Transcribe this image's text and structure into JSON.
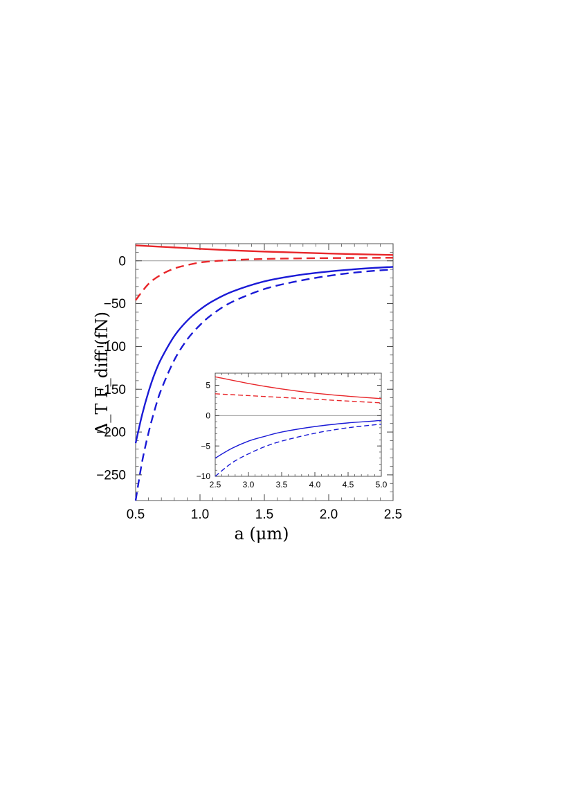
{
  "chart_data": [
    {
      "type": "line",
      "xlabel": "a (μm)",
      "ylabel": "Δ_T F_diff (fN)",
      "xlim": [
        0.5,
        2.5
      ],
      "ylim": [
        -280,
        20
      ],
      "x_ticks": [
        0.5,
        1.0,
        1.5,
        2.0,
        2.5
      ],
      "x_tick_labels": [
        "0.5",
        "1.0",
        "1.5",
        "2.0",
        "2.5"
      ],
      "y_ticks": [
        0,
        -50,
        -100,
        -150,
        -200,
        -250
      ],
      "y_tick_labels": [
        "0",
        "−50",
        "−100",
        "−150",
        "−200",
        "−250"
      ],
      "grid": false,
      "zero_line": true,
      "series": [
        {
          "color": "#e8262a",
          "style": "solid",
          "x": [
            0.5,
            0.75,
            1.0,
            1.25,
            1.5,
            1.75,
            2.0,
            2.25,
            2.5
          ],
          "y": [
            18,
            16,
            14,
            12.2,
            10.8,
            9.6,
            8.5,
            7.6,
            6.8
          ]
        },
        {
          "color": "#e8262a",
          "style": "dashed",
          "x": [
            0.5,
            0.6,
            0.7,
            0.8,
            0.9,
            1.0,
            1.1,
            1.2,
            1.3,
            1.5,
            1.75,
            2.0,
            2.25,
            2.5
          ],
          "y": [
            -46,
            -27,
            -16,
            -9,
            -5,
            -2,
            -0.5,
            0.5,
            1.2,
            2.2,
            2.8,
            3.2,
            3.4,
            3.6
          ]
        },
        {
          "color": "#1a1ad6",
          "style": "solid",
          "x": [
            0.5,
            0.55,
            0.6,
            0.65,
            0.7,
            0.8,
            0.9,
            1.0,
            1.1,
            1.25,
            1.5,
            1.75,
            2.0,
            2.25,
            2.5
          ],
          "y": [
            -213,
            -180,
            -153,
            -131,
            -114,
            -88,
            -70,
            -57,
            -47,
            -36,
            -24,
            -17,
            -12.5,
            -9.3,
            -7
          ]
        },
        {
          "color": "#1a1ad6",
          "style": "dashed",
          "x": [
            0.5,
            0.55,
            0.6,
            0.65,
            0.7,
            0.8,
            0.9,
            1.0,
            1.1,
            1.25,
            1.5,
            1.75,
            2.0,
            2.25,
            2.5
          ],
          "y": [
            -280,
            -235,
            -201,
            -173,
            -150,
            -116,
            -92,
            -75,
            -62,
            -48,
            -33,
            -24,
            -17.5,
            -13,
            -10
          ]
        }
      ]
    },
    {
      "type": "line",
      "role": "inset",
      "xlim": [
        2.5,
        5.0
      ],
      "ylim": [
        -10,
        7
      ],
      "x_ticks": [
        2.5,
        3.0,
        3.5,
        4.0,
        4.5,
        5.0
      ],
      "x_tick_labels": [
        "2.5",
        "3.0",
        "3.5",
        "4.0",
        "4.5",
        "5.0"
      ],
      "y_ticks": [
        5,
        0,
        -5,
        -10
      ],
      "y_tick_labels": [
        "5",
        "0",
        "−5",
        "−10"
      ],
      "grid": false,
      "zero_line": true,
      "series": [
        {
          "color": "#e8262a",
          "style": "solid",
          "x": [
            2.5,
            3.0,
            3.5,
            4.0,
            4.5,
            5.0
          ],
          "y": [
            6.4,
            5.3,
            4.4,
            3.7,
            3.2,
            2.8
          ]
        },
        {
          "color": "#e8262a",
          "style": "dashed",
          "x": [
            2.5,
            3.0,
            3.5,
            4.0,
            4.5,
            5.0
          ],
          "y": [
            3.6,
            3.3,
            3.0,
            2.7,
            2.4,
            2.1
          ]
        },
        {
          "color": "#1a1ad6",
          "style": "solid",
          "x": [
            2.5,
            2.75,
            3.0,
            3.25,
            3.5,
            4.0,
            4.5,
            5.0
          ],
          "y": [
            -7.0,
            -5.4,
            -4.2,
            -3.4,
            -2.7,
            -1.8,
            -1.2,
            -0.8
          ]
        },
        {
          "color": "#1a1ad6",
          "style": "dashed",
          "x": [
            2.5,
            2.75,
            3.0,
            3.25,
            3.5,
            4.0,
            4.5,
            5.0
          ],
          "y": [
            -10.0,
            -7.8,
            -6.3,
            -5.1,
            -4.2,
            -2.9,
            -2.0,
            -1.4
          ]
        }
      ]
    }
  ]
}
